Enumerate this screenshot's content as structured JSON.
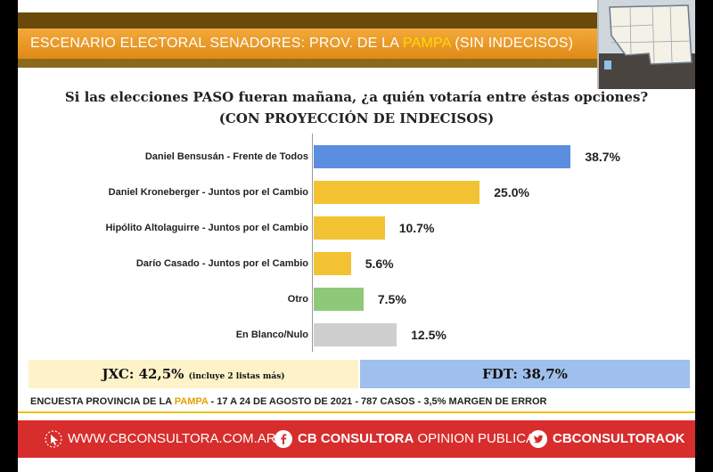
{
  "header": {
    "title_before": "ESCENARIO ELECTORAL SENADORES: PROV. DE LA ",
    "title_highlight": "PAMPA",
    "title_after": " (SIN INDECISOS)"
  },
  "chart_data": {
    "type": "bar",
    "orientation": "horizontal",
    "title": "Si las elecciones PASO fueran mañana, ¿a quién votaría entre éstas opciones?",
    "subtitle": "(CON PROYECCIÓN DE INDECISOS)",
    "categories": [
      "Daniel Bensusán - Frente de Todos",
      "Daniel Kroneberger - Juntos por el Cambio",
      "Hipólito Altolaguirre - Juntos por el Cambio",
      "Darío Casado - Juntos por el Cambio",
      "Otro",
      "En Blanco/Nulo"
    ],
    "values": [
      38.7,
      25.0,
      10.7,
      5.6,
      7.5,
      12.5
    ],
    "value_labels": [
      "38.7%",
      "25.0%",
      "10.7%",
      "5.6%",
      "7.5%",
      "12.5%"
    ],
    "colors": [
      "#5b8ee0",
      "#f3c232",
      "#f3c232",
      "#f3c232",
      "#8ec97a",
      "#cfcfcf"
    ],
    "xlim": [
      0,
      45
    ]
  },
  "summary": {
    "jxc_label": "JXC: 42,5%",
    "jxc_note": "(incluye 2 listas más)",
    "fdt_label": "FDT: 38,7%"
  },
  "footer": {
    "note_before": "ENCUESTA PROVINCIA DE LA ",
    "note_highlight": "PAMPA",
    "note_after": " - 17 A 24 DE AGOSTO DE 2021 - 787 CASOS - 3,5% MARGEN DE ERROR"
  },
  "social": {
    "web": "WWW.CBCONSULTORA.COM.AR",
    "facebook_bold": "CB CONSULTORA",
    "facebook_thin": " OPINION PUBLICA",
    "twitter": "CBCONSULTORAOK",
    "icons": [
      "cursor-icon",
      "facebook-icon",
      "twitter-icon"
    ]
  },
  "colors": {
    "header_orange": "#e8951f",
    "highlight_yellow": "#ffd800",
    "social_red": "#d82d2d"
  }
}
